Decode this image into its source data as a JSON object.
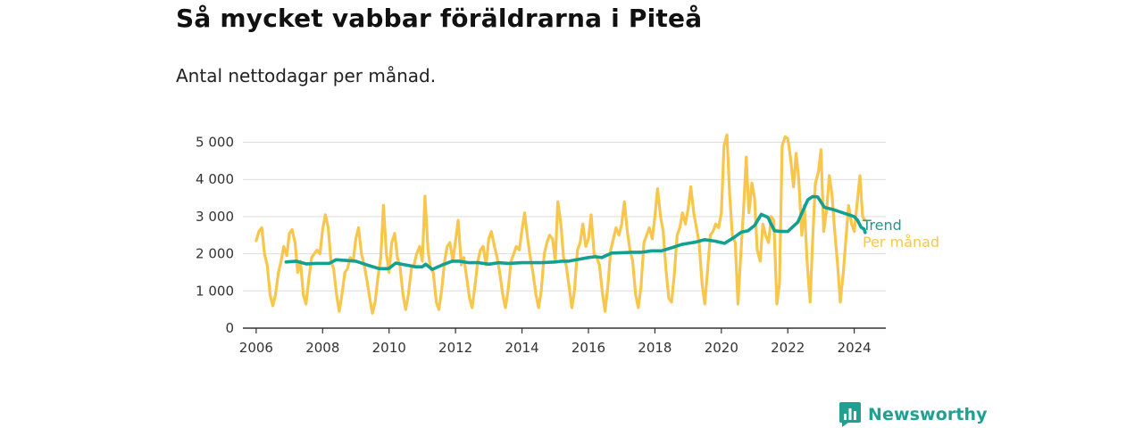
{
  "chart_data": {
    "type": "line",
    "title": "Så mycket vabbar föräldrarna i Piteå",
    "subtitle": "Antal nettodagar per månad.",
    "xlabel": "",
    "ylabel": "",
    "xlim": [
      2005.6,
      2024.95
    ],
    "ylim": [
      0,
      5300
    ],
    "x_ticks": [
      2006,
      2008,
      2010,
      2012,
      2014,
      2016,
      2018,
      2020,
      2022,
      2024
    ],
    "y_ticks": [
      0,
      1000,
      2000,
      3000,
      4000,
      5000
    ],
    "y_tick_labels": [
      "0",
      "1 000",
      "2 000",
      "3 000",
      "4 000",
      "5 000"
    ],
    "grid": true,
    "legend_placement": "right, next to line ends",
    "colors": {
      "trend": "#13a08f",
      "monthly": "#f8c64b"
    },
    "series": [
      {
        "name": "Per månad",
        "x": [
          2006.0,
          2006.08,
          2006.17,
          2006.25,
          2006.33,
          2006.42,
          2006.5,
          2006.58,
          2006.67,
          2006.75,
          2006.83,
          2006.92,
          2007.0,
          2007.08,
          2007.17,
          2007.25,
          2007.33,
          2007.42,
          2007.5,
          2007.58,
          2007.67,
          2007.75,
          2007.83,
          2007.92,
          2008.0,
          2008.08,
          2008.17,
          2008.25,
          2008.33,
          2008.42,
          2008.5,
          2008.58,
          2008.67,
          2008.75,
          2008.83,
          2008.92,
          2009.0,
          2009.08,
          2009.17,
          2009.25,
          2009.33,
          2009.42,
          2009.5,
          2009.58,
          2009.67,
          2009.75,
          2009.83,
          2009.92,
          2010.0,
          2010.08,
          2010.17,
          2010.25,
          2010.33,
          2010.42,
          2010.5,
          2010.58,
          2010.67,
          2010.75,
          2010.83,
          2010.92,
          2011.0,
          2011.08,
          2011.17,
          2011.25,
          2011.33,
          2011.42,
          2011.5,
          2011.58,
          2011.67,
          2011.75,
          2011.83,
          2011.92,
          2012.0,
          2012.08,
          2012.17,
          2012.25,
          2012.33,
          2012.42,
          2012.5,
          2012.58,
          2012.67,
          2012.75,
          2012.83,
          2012.92,
          2013.0,
          2013.08,
          2013.17,
          2013.25,
          2013.33,
          2013.42,
          2013.5,
          2013.58,
          2013.67,
          2013.75,
          2013.83,
          2013.92,
          2014.0,
          2014.08,
          2014.17,
          2014.25,
          2014.33,
          2014.42,
          2014.5,
          2014.58,
          2014.67,
          2014.75,
          2014.83,
          2014.92,
          2015.0,
          2015.08,
          2015.17,
          2015.25,
          2015.33,
          2015.42,
          2015.5,
          2015.58,
          2015.67,
          2015.75,
          2015.83,
          2015.92,
          2016.0,
          2016.08,
          2016.17,
          2016.25,
          2016.33,
          2016.42,
          2016.5,
          2016.58,
          2016.67,
          2016.75,
          2016.83,
          2016.92,
          2017.0,
          2017.08,
          2017.17,
          2017.25,
          2017.33,
          2017.42,
          2017.5,
          2017.58,
          2017.67,
          2017.75,
          2017.83,
          2017.92,
          2018.0,
          2018.08,
          2018.17,
          2018.25,
          2018.33,
          2018.42,
          2018.5,
          2018.58,
          2018.67,
          2018.75,
          2018.83,
          2018.92,
          2019.0,
          2019.08,
          2019.17,
          2019.25,
          2019.33,
          2019.42,
          2019.5,
          2019.58,
          2019.67,
          2019.75,
          2019.83,
          2019.92,
          2020.0,
          2020.08,
          2020.17,
          2020.25,
          2020.33,
          2020.42,
          2020.5,
          2020.58,
          2020.67,
          2020.75,
          2020.83,
          2020.92,
          2021.0,
          2021.08,
          2021.17,
          2021.25,
          2021.33,
          2021.42,
          2021.5,
          2021.58,
          2021.67,
          2021.75,
          2021.83,
          2021.92,
          2022.0,
          2022.08,
          2022.17,
          2022.25,
          2022.33,
          2022.42,
          2022.5,
          2022.58,
          2022.67,
          2022.75,
          2022.83,
          2022.92,
          2023.0,
          2023.08,
          2023.17,
          2023.25,
          2023.33,
          2023.42,
          2023.5,
          2023.58,
          2023.67,
          2023.75,
          2023.83,
          2023.92,
          2024.0,
          2024.08,
          2024.17,
          2024.25,
          2024.33
        ],
        "values": [
          2350,
          2600,
          2700,
          2000,
          1700,
          900,
          600,
          900,
          1500,
          1800,
          2200,
          1950,
          2550,
          2650,
          2300,
          1500,
          1800,
          900,
          650,
          1300,
          1900,
          2000,
          2100,
          2000,
          2650,
          3050,
          2700,
          1800,
          1600,
          900,
          450,
          900,
          1500,
          1600,
          1900,
          1800,
          2400,
          2700,
          2000,
          1700,
          1300,
          800,
          400,
          700,
          1400,
          1900,
          3300,
          2000,
          1500,
          2300,
          2550,
          1900,
          1650,
          900,
          500,
          900,
          1600,
          1700,
          2000,
          2200,
          1800,
          3550,
          2100,
          1600,
          1500,
          700,
          500,
          1000,
          1800,
          2200,
          2300,
          1800,
          2350,
          2900,
          1700,
          1900,
          1400,
          800,
          550,
          1100,
          1800,
          2100,
          2200,
          1700,
          2400,
          2600,
          2200,
          1900,
          1500,
          900,
          550,
          1000,
          1800,
          2000,
          2200,
          2100,
          2650,
          3100,
          2400,
          1900,
          1500,
          900,
          550,
          1000,
          2000,
          2300,
          2500,
          2400,
          1800,
          3400,
          2800,
          1900,
          1700,
          1100,
          550,
          1000,
          2100,
          2300,
          2800,
          2200,
          2400,
          3050,
          2000,
          1900,
          1700,
          950,
          450,
          1100,
          2100,
          2400,
          2700,
          2500,
          2800,
          3400,
          2600,
          2100,
          1800,
          900,
          550,
          1100,
          2300,
          2500,
          2700,
          2400,
          3000,
          3750,
          3000,
          2600,
          1600,
          800,
          700,
          1400,
          2500,
          2700,
          3100,
          2800,
          3200,
          3800,
          3100,
          2700,
          2300,
          1200,
          650,
          1500,
          2500,
          2600,
          2800,
          2700,
          3100,
          4900,
          5200,
          3600,
          2500,
          2300,
          650,
          1900,
          3200,
          4600,
          3100,
          3900,
          3500,
          2100,
          1800,
          2800,
          2500,
          2300,
          3000,
          2900,
          650,
          1200,
          4900,
          5150,
          5100,
          4600,
          3800,
          4700,
          4000,
          2500,
          3300,
          1800,
          700,
          2400,
          3900,
          4200,
          4800,
          2600,
          3200,
          4100,
          3600,
          2500,
          1700,
          700,
          1500,
          2400,
          3300,
          2800,
          2600,
          3300,
          4100,
          3000,
          2900
        ]
      },
      {
        "name": "Trend",
        "x": [
          2006.9,
          2007.2,
          2007.5,
          2007.8,
          2008.2,
          2008.4,
          2008.7,
          2009.0,
          2009.2,
          2009.4,
          2009.7,
          2009.95,
          2010.0,
          2010.2,
          2010.5,
          2010.8,
          2011.0,
          2011.1,
          2011.3,
          2011.6,
          2011.9,
          2012.1,
          2012.4,
          2012.7,
          2013.0,
          2013.3,
          2013.6,
          2014.0,
          2014.3,
          2014.6,
          2015.0,
          2015.2,
          2015.4,
          2015.7,
          2016.0,
          2016.2,
          2016.4,
          2016.7,
          2017.0,
          2017.3,
          2017.6,
          2017.9,
          2018.2,
          2018.5,
          2018.8,
          2019.0,
          2019.2,
          2019.5,
          2019.8,
          2020.1,
          2020.4,
          2020.6,
          2020.8,
          2021.0,
          2021.2,
          2021.4,
          2021.6,
          2021.8,
          2022.0,
          2022.3,
          2022.6,
          2022.75,
          2022.9,
          2023.1,
          2023.4,
          2023.6,
          2023.8,
          2024.0,
          2024.1,
          2024.2,
          2024.3,
          2024.33
        ],
        "values": [
          1780,
          1800,
          1730,
          1740,
          1740,
          1840,
          1820,
          1800,
          1740,
          1680,
          1600,
          1600,
          1610,
          1750,
          1700,
          1650,
          1650,
          1720,
          1580,
          1700,
          1800,
          1800,
          1760,
          1760,
          1720,
          1760,
          1740,
          1760,
          1760,
          1760,
          1780,
          1800,
          1800,
          1850,
          1900,
          1920,
          1900,
          2020,
          2030,
          2040,
          2040,
          2080,
          2080,
          2160,
          2250,
          2280,
          2310,
          2380,
          2340,
          2280,
          2450,
          2580,
          2620,
          2760,
          3060,
          2980,
          2620,
          2600,
          2600,
          2850,
          3450,
          3540,
          3530,
          3250,
          3180,
          3120,
          3060,
          3000,
          2900,
          2720,
          2660,
          2570
        ]
      }
    ]
  },
  "logo": {
    "text": "Newsworthy"
  }
}
